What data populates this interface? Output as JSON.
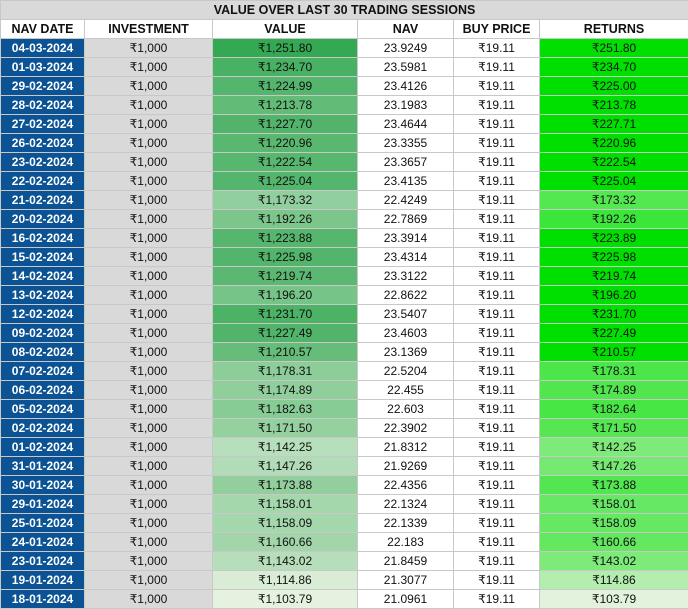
{
  "title": "VALUE OVER LAST 30 TRADING SESSIONS",
  "headers": [
    "NAV DATE",
    "INVESTMENT",
    "VALUE",
    "NAV",
    "BUY PRICE",
    "RETURNS"
  ],
  "colors": {
    "date_bg": "#0b5394",
    "investment_bg": "#d9d9d9",
    "value_high": "#34a853",
    "value_low": "#e6f2e0",
    "returns_high": "#00e000",
    "returns_low": "#e3f2dc"
  },
  "rows": [
    {
      "date": "04-03-2024",
      "investment": "₹1,000",
      "value": "₹1,251.80",
      "nav": "23.9249",
      "buy": "₹19.11",
      "returns": "₹251.80",
      "v": 251.8
    },
    {
      "date": "01-03-2024",
      "investment": "₹1,000",
      "value": "₹1,234.70",
      "nav": "23.5981",
      "buy": "₹19.11",
      "returns": "₹234.70",
      "v": 234.7
    },
    {
      "date": "29-02-2024",
      "investment": "₹1,000",
      "value": "₹1,224.99",
      "nav": "23.4126",
      "buy": "₹19.11",
      "returns": "₹225.00",
      "v": 225.0
    },
    {
      "date": "28-02-2024",
      "investment": "₹1,000",
      "value": "₹1,213.78",
      "nav": "23.1983",
      "buy": "₹19.11",
      "returns": "₹213.78",
      "v": 213.78
    },
    {
      "date": "27-02-2024",
      "investment": "₹1,000",
      "value": "₹1,227.70",
      "nav": "23.4644",
      "buy": "₹19.11",
      "returns": "₹227.71",
      "v": 227.71
    },
    {
      "date": "26-02-2024",
      "investment": "₹1,000",
      "value": "₹1,220.96",
      "nav": "23.3355",
      "buy": "₹19.11",
      "returns": "₹220.96",
      "v": 220.96
    },
    {
      "date": "23-02-2024",
      "investment": "₹1,000",
      "value": "₹1,222.54",
      "nav": "23.3657",
      "buy": "₹19.11",
      "returns": "₹222.54",
      "v": 222.54
    },
    {
      "date": "22-02-2024",
      "investment": "₹1,000",
      "value": "₹1,225.04",
      "nav": "23.4135",
      "buy": "₹19.11",
      "returns": "₹225.04",
      "v": 225.04
    },
    {
      "date": "21-02-2024",
      "investment": "₹1,000",
      "value": "₹1,173.32",
      "nav": "22.4249",
      "buy": "₹19.11",
      "returns": "₹173.32",
      "v": 173.32
    },
    {
      "date": "20-02-2024",
      "investment": "₹1,000",
      "value": "₹1,192.26",
      "nav": "22.7869",
      "buy": "₹19.11",
      "returns": "₹192.26",
      "v": 192.26
    },
    {
      "date": "16-02-2024",
      "investment": "₹1,000",
      "value": "₹1,223.88",
      "nav": "23.3914",
      "buy": "₹19.11",
      "returns": "₹223.89",
      "v": 223.89
    },
    {
      "date": "15-02-2024",
      "investment": "₹1,000",
      "value": "₹1,225.98",
      "nav": "23.4314",
      "buy": "₹19.11",
      "returns": "₹225.98",
      "v": 225.98
    },
    {
      "date": "14-02-2024",
      "investment": "₹1,000",
      "value": "₹1,219.74",
      "nav": "23.3122",
      "buy": "₹19.11",
      "returns": "₹219.74",
      "v": 219.74
    },
    {
      "date": "13-02-2024",
      "investment": "₹1,000",
      "value": "₹1,196.20",
      "nav": "22.8622",
      "buy": "₹19.11",
      "returns": "₹196.20",
      "v": 196.2
    },
    {
      "date": "12-02-2024",
      "investment": "₹1,000",
      "value": "₹1,231.70",
      "nav": "23.5407",
      "buy": "₹19.11",
      "returns": "₹231.70",
      "v": 231.7
    },
    {
      "date": "09-02-2024",
      "investment": "₹1,000",
      "value": "₹1,227.49",
      "nav": "23.4603",
      "buy": "₹19.11",
      "returns": "₹227.49",
      "v": 227.49
    },
    {
      "date": "08-02-2024",
      "investment": "₹1,000",
      "value": "₹1,210.57",
      "nav": "23.1369",
      "buy": "₹19.11",
      "returns": "₹210.57",
      "v": 210.57
    },
    {
      "date": "07-02-2024",
      "investment": "₹1,000",
      "value": "₹1,178.31",
      "nav": "22.5204",
      "buy": "₹19.11",
      "returns": "₹178.31",
      "v": 178.31
    },
    {
      "date": "06-02-2024",
      "investment": "₹1,000",
      "value": "₹1,174.89",
      "nav": "22.455",
      "buy": "₹19.11",
      "returns": "₹174.89",
      "v": 174.89
    },
    {
      "date": "05-02-2024",
      "investment": "₹1,000",
      "value": "₹1,182.63",
      "nav": "22.603",
      "buy": "₹19.11",
      "returns": "₹182.64",
      "v": 182.64
    },
    {
      "date": "02-02-2024",
      "investment": "₹1,000",
      "value": "₹1,171.50",
      "nav": "22.3902",
      "buy": "₹19.11",
      "returns": "₹171.50",
      "v": 171.5
    },
    {
      "date": "01-02-2024",
      "investment": "₹1,000",
      "value": "₹1,142.25",
      "nav": "21.8312",
      "buy": "₹19.11",
      "returns": "₹142.25",
      "v": 142.25
    },
    {
      "date": "31-01-2024",
      "investment": "₹1,000",
      "value": "₹1,147.26",
      "nav": "21.9269",
      "buy": "₹19.11",
      "returns": "₹147.26",
      "v": 147.26
    },
    {
      "date": "30-01-2024",
      "investment": "₹1,000",
      "value": "₹1,173.88",
      "nav": "22.4356",
      "buy": "₹19.11",
      "returns": "₹173.88",
      "v": 173.88
    },
    {
      "date": "29-01-2024",
      "investment": "₹1,000",
      "value": "₹1,158.01",
      "nav": "22.1324",
      "buy": "₹19.11",
      "returns": "₹158.01",
      "v": 158.01
    },
    {
      "date": "25-01-2024",
      "investment": "₹1,000",
      "value": "₹1,158.09",
      "nav": "22.1339",
      "buy": "₹19.11",
      "returns": "₹158.09",
      "v": 158.09
    },
    {
      "date": "24-01-2024",
      "investment": "₹1,000",
      "value": "₹1,160.66",
      "nav": "22.183",
      "buy": "₹19.11",
      "returns": "₹160.66",
      "v": 160.66
    },
    {
      "date": "23-01-2024",
      "investment": "₹1,000",
      "value": "₹1,143.02",
      "nav": "21.8459",
      "buy": "₹19.11",
      "returns": "₹143.02",
      "v": 143.02
    },
    {
      "date": "19-01-2024",
      "investment": "₹1,000",
      "value": "₹1,114.86",
      "nav": "21.3077",
      "buy": "₹19.11",
      "returns": "₹114.86",
      "v": 114.86
    },
    {
      "date": "18-01-2024",
      "investment": "₹1,000",
      "value": "₹1,103.79",
      "nav": "21.0961",
      "buy": "₹19.11",
      "returns": "₹103.79",
      "v": 103.79
    }
  ]
}
